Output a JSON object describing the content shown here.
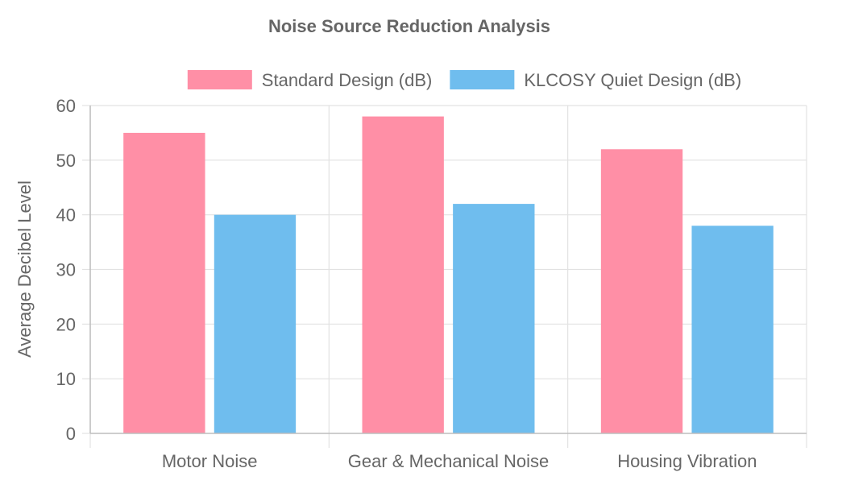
{
  "chart_data": {
    "type": "bar",
    "title": "Noise Source Reduction Analysis",
    "xlabel": "",
    "ylabel": "Average Decibel Level",
    "categories": [
      "Motor Noise",
      "Gear & Mechanical Noise",
      "Housing Vibration"
    ],
    "series": [
      {
        "name": "Standard Design (dB)",
        "values": [
          55,
          58,
          52
        ],
        "color": "#ff8fa6"
      },
      {
        "name": "KLCOSY Quiet Design (dB)",
        "values": [
          40,
          42,
          38
        ],
        "color": "#6fbdee"
      }
    ],
    "ylim": [
      0,
      60
    ],
    "yticks": [
      0,
      10,
      20,
      30,
      40,
      50,
      60
    ],
    "grid": true,
    "legend_position": "top"
  }
}
